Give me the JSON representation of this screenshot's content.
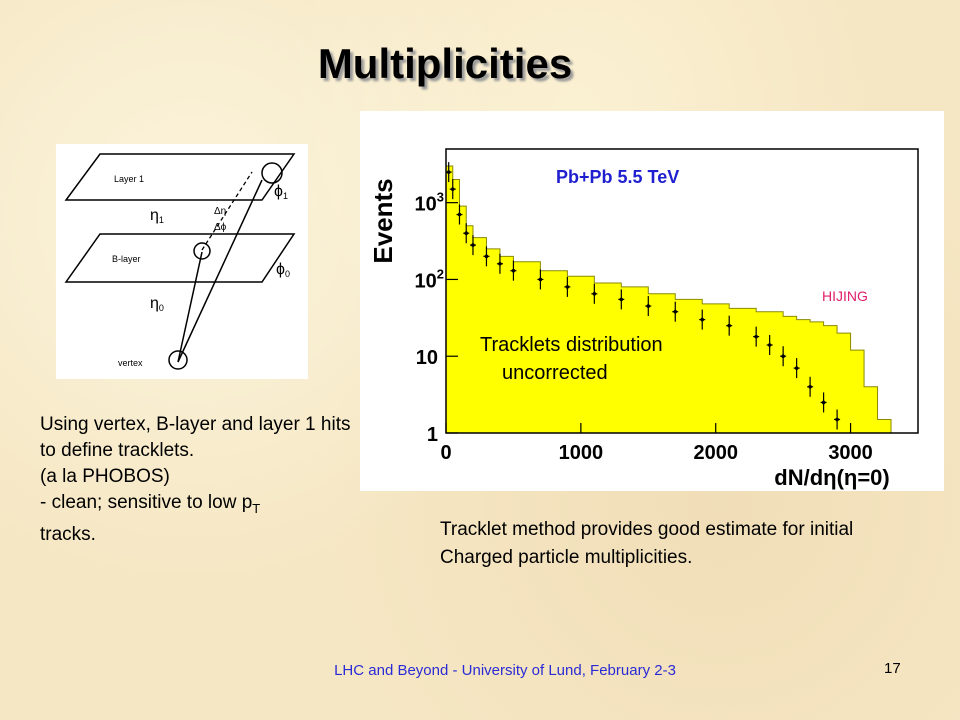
{
  "slide": {
    "title": "Multiplicities",
    "footer": "LHC and Beyond - University of Lund, February 2-3",
    "page_number": "17"
  },
  "diagram": {
    "layer1_label": "Layer 1",
    "blayer_label": "B-layer",
    "vertex_label": "vertex",
    "phi1": "ϕ",
    "phi1_sub": "1",
    "phi0": "ϕ",
    "phi0_sub": "0",
    "eta1": "η",
    "eta1_sub": "1",
    "eta0": "η",
    "eta0_sub": "0",
    "delta_eta": "Δη",
    "delta_phi": "Δϕ"
  },
  "left_text": {
    "line1": "Using vertex, B-layer and layer 1 hits to define tracklets.",
    "line2": "(a la PHOBOS)",
    "line3_prefix": "- clean; sensitive to low p",
    "line3_sub": "T",
    "line4": "tracks."
  },
  "right_text": "Tracklet method provides good estimate for initial Charged particle multiplicities.",
  "chart_data": {
    "type": "area",
    "title": "Pb+Pb 5.5 TeV",
    "ylabel": "Events",
    "xlabel": "dN/dη(η=0)",
    "xlim": [
      0,
      3500
    ],
    "ylim": [
      1,
      5000
    ],
    "log_y": true,
    "x_ticks": [
      0,
      1000,
      2000,
      3000
    ],
    "y_ticks": [
      {
        "value": 1,
        "label": "1"
      },
      {
        "value": 10,
        "label": "10"
      },
      {
        "value": 100,
        "label": "10",
        "sup": "2"
      },
      {
        "value": 1000,
        "label": "10",
        "sup": "3"
      }
    ],
    "annotations": {
      "model": "HIJING",
      "dist_line1": "Tracklets distribution",
      "dist_line2": "uncorrected"
    },
    "series": [
      {
        "label": "HIJING",
        "style": "filled-histogram",
        "color": "#ffff00",
        "x": [
          0,
          50,
          100,
          150,
          200,
          300,
          400,
          500,
          700,
          900,
          1100,
          1300,
          1500,
          1700,
          1900,
          2100,
          2300,
          2500,
          2600,
          2700,
          2800,
          2900,
          3000,
          3100,
          3200,
          3300
        ],
        "y": [
          3000,
          2000,
          900,
          500,
          350,
          250,
          200,
          170,
          130,
          110,
          90,
          80,
          65,
          55,
          48,
          42,
          38,
          33,
          30,
          28,
          25,
          20,
          12,
          4,
          1.5,
          1
        ]
      },
      {
        "label": "Tracklets distribution uncorrected",
        "style": "points-with-errors",
        "color": "#000000",
        "x": [
          20,
          50,
          100,
          150,
          200,
          300,
          400,
          500,
          700,
          900,
          1100,
          1300,
          1500,
          1700,
          1900,
          2100,
          2300,
          2400,
          2500,
          2600,
          2700,
          2800,
          2900
        ],
        "y": [
          2500,
          1500,
          700,
          400,
          280,
          200,
          160,
          130,
          100,
          80,
          65,
          55,
          45,
          38,
          30,
          25,
          18,
          14,
          10,
          7,
          4,
          2.5,
          1.5
        ]
      }
    ]
  }
}
